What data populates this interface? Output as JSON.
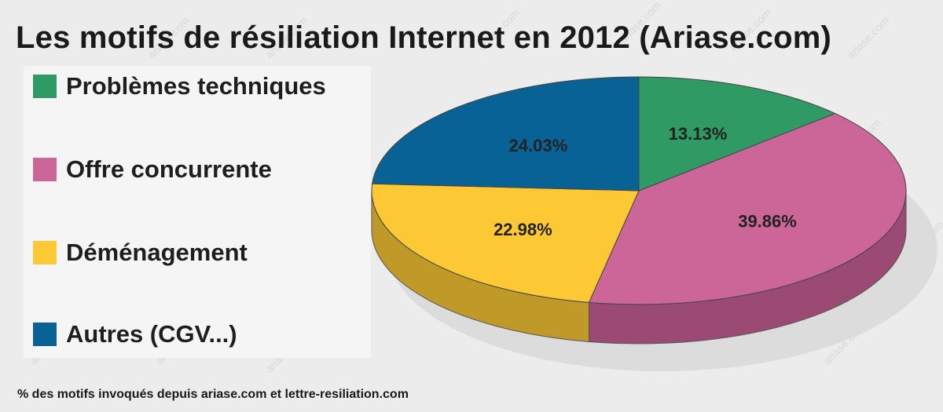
{
  "chart_data": {
    "type": "pie",
    "title": "Les motifs de résiliation Internet en 2012 (Ariase.com)",
    "categories": [
      "Problèmes techniques",
      "Offre concurrente",
      "Déménagement",
      "Autres (CGV...)"
    ],
    "values": [
      13.13,
      39.86,
      22.98,
      24.03
    ],
    "data_labels": [
      "13.13%",
      "39.86%",
      "22.98%",
      "24.03%"
    ],
    "colors": [
      "#2f9a63",
      "#cc6699",
      "#fcc935",
      "#096295"
    ],
    "side_colors": [
      "#24784c",
      "#9a4a73",
      "#c09a28",
      "#064a70"
    ],
    "legend_position": "left",
    "three_d": true,
    "footnote": "% des motifs invoqués depuis ariase.com et lettre-resiliation.com"
  },
  "watermark": "ariase.com"
}
